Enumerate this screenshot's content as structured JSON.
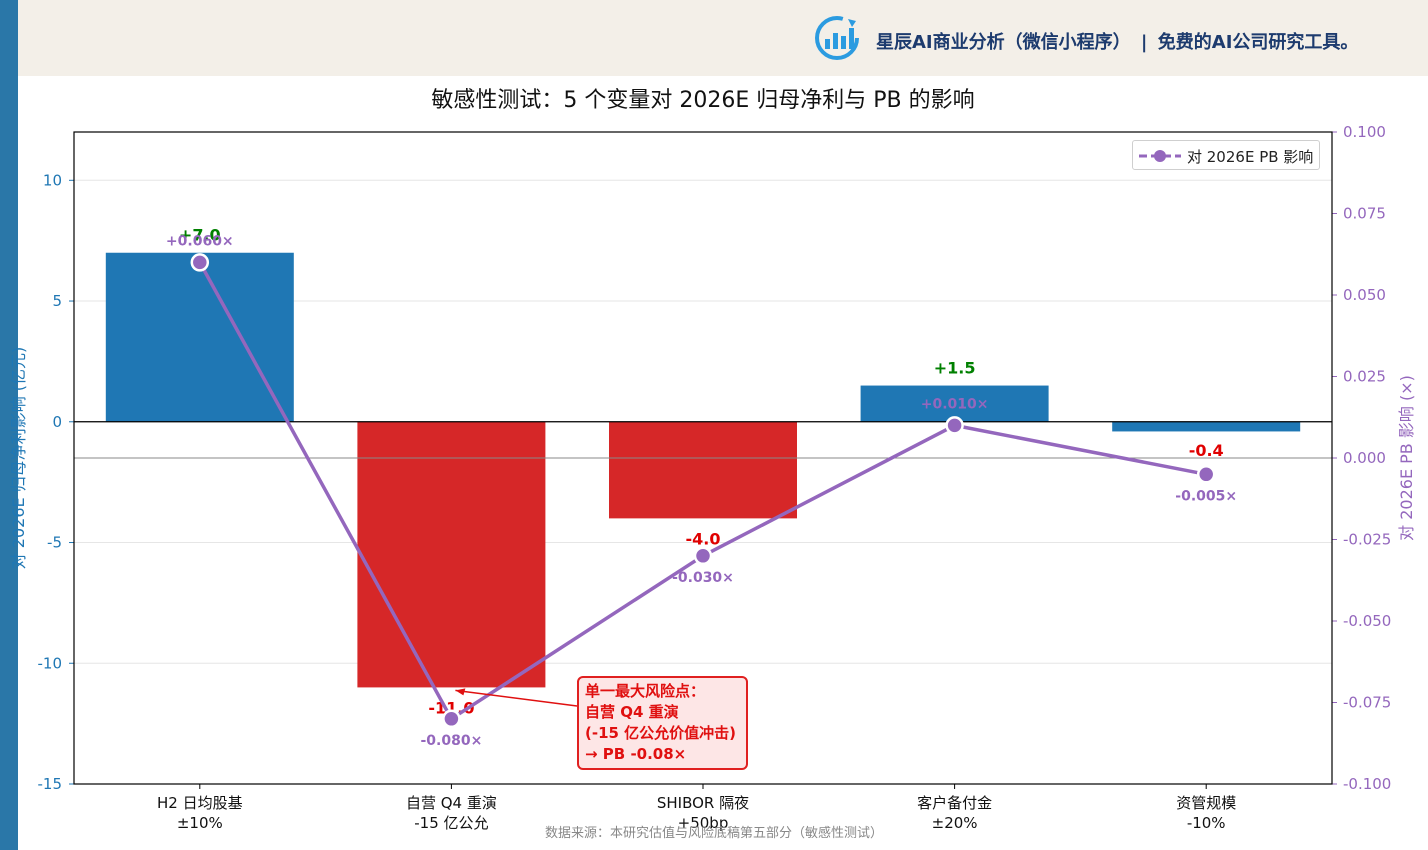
{
  "banner": {
    "brand_name": "星辰AI商业分析（微信小程序）",
    "separator": "|",
    "tagline": "免费的AI公司研究工具。",
    "logo_icon": "chart-logo-icon",
    "colors": {
      "background": "#f3efe8",
      "text": "#1d3b6e",
      "side_strip": "#2a77a8"
    }
  },
  "chart_data": {
    "type": "bar",
    "title": "敏感性测试：5 个变量对 2026E 归母净利与 PB 的影响",
    "categories": [
      "H2 日均股基\n±10%",
      "自营 Q4 重演\n-15 亿公允",
      "SHIBOR 隔夜\n+50bp",
      "客户备付金\n±20%",
      "资管规模\n-10%"
    ],
    "ylabel": "对 2026E 归母净利影响 (亿元)",
    "ylim": [
      -15,
      12
    ],
    "yticks": [
      10,
      5,
      0,
      -5,
      -10,
      -15
    ],
    "y2label": "对 2026E PB 影响 (×)",
    "y2lim": [
      -0.1,
      0.1
    ],
    "y2ticks": [
      0.1,
      0.075,
      0.05,
      0.025,
      0.0,
      -0.025,
      -0.05,
      -0.075,
      -0.1
    ],
    "y2tick_labels": [
      "0.100",
      "0.075",
      "0.050",
      "0.025",
      "0.000",
      "-0.025",
      "-0.050",
      "-0.075",
      "-0.100"
    ],
    "series": [
      {
        "name": "",
        "kind": "bar",
        "values": [
          7.0,
          -11.0,
          -4.0,
          1.5,
          -0.4
        ],
        "labels": [
          "+7.0",
          "-11.0",
          "-4.0",
          "+1.5",
          "-0.4"
        ],
        "colors": [
          "#1f77b4",
          "#d62728",
          "#d62728",
          "#1f77b4",
          "#1f77b4"
        ]
      },
      {
        "name": "对 2026E PB 影响",
        "kind": "line",
        "axis": "right",
        "values": [
          0.06,
          -0.08,
          -0.03,
          0.01,
          -0.005
        ],
        "labels": [
          "+0.060×",
          "-0.080×",
          "-0.030×",
          "+0.010×",
          "-0.005×"
        ],
        "color": "#9467bd"
      }
    ],
    "grid": true,
    "legend_position": "top-right",
    "annotation": {
      "text": "单一最大风险点：\n自营 Q4 重演\n(-15 亿公允价值冲击)\n→ PB -0.08×",
      "target_category": 1,
      "color": "#e01010"
    },
    "label_colors": {
      "positive": "#008000",
      "negative": "#e00000",
      "pb": "#9467bd",
      "left_axis": "#1f77b4"
    }
  },
  "footer": {
    "source": "数据来源：本研究估值与风险底稿第五部分（敏感性测试）"
  }
}
